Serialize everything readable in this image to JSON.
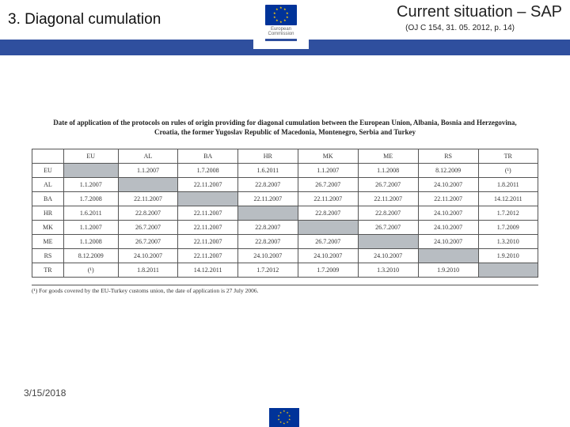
{
  "header": {
    "title_left": "3. Diagonal cumulation",
    "title_right": "Current situation – SAP",
    "subtitle": "(OJ C 154, 31. 05. 2012, p. 14)",
    "logo_text1": "European",
    "logo_text2": "Commission"
  },
  "caption": "Date of application of the protocols on rules of origin providing for diagonal cumulation between the European Union, Albania, Bosnia and Herzegovina, Croatia, the former Yugoslav Republic of Macedonia, Montenegro, Serbia and Turkey",
  "matrix": {
    "cols": [
      "EU",
      "AL",
      "BA",
      "HR",
      "MK",
      "ME",
      "RS",
      "TR"
    ],
    "rows": [
      {
        "h": "EU",
        "cells": [
          "",
          "1.1.2007",
          "1.7.2008",
          "1.6.2011",
          "1.1.2007",
          "1.1.2008",
          "8.12.2009",
          "(¹)"
        ],
        "grey": [
          0
        ]
      },
      {
        "h": "AL",
        "cells": [
          "1.1.2007",
          "",
          "22.11.2007",
          "22.8.2007",
          "26.7.2007",
          "26.7.2007",
          "24.10.2007",
          "1.8.2011"
        ],
        "grey": [
          1
        ]
      },
      {
        "h": "BA",
        "cells": [
          "1.7.2008",
          "22.11.2007",
          "",
          "22.11.2007",
          "22.11.2007",
          "22.11.2007",
          "22.11.2007",
          "14.12.2011"
        ],
        "grey": [
          2
        ]
      },
      {
        "h": "HR",
        "cells": [
          "1.6.2011",
          "22.8.2007",
          "22.11.2007",
          "",
          "22.8.2007",
          "22.8.2007",
          "24.10.2007",
          "1.7.2012"
        ],
        "grey": [
          3
        ]
      },
      {
        "h": "MK",
        "cells": [
          "1.1.2007",
          "26.7.2007",
          "22.11.2007",
          "22.8.2007",
          "",
          "26.7.2007",
          "24.10.2007",
          "1.7.2009"
        ],
        "grey": [
          4
        ]
      },
      {
        "h": "ME",
        "cells": [
          "1.1.2008",
          "26.7.2007",
          "22.11.2007",
          "22.8.2007",
          "26.7.2007",
          "",
          "24.10.2007",
          "1.3.2010"
        ],
        "grey": [
          5
        ]
      },
      {
        "h": "RS",
        "cells": [
          "8.12.2009",
          "24.10.2007",
          "22.11.2007",
          "24.10.2007",
          "24.10.2007",
          "24.10.2007",
          "",
          "1.9.2010"
        ],
        "grey": [
          6
        ]
      },
      {
        "h": "TR",
        "cells": [
          "(¹)",
          "1.8.2011",
          "14.12.2011",
          "1.7.2012",
          "1.7.2009",
          "1.3.2010",
          "1.9.2010",
          ""
        ],
        "grey": [
          7
        ]
      }
    ]
  },
  "footnote": "(¹) For goods covered by the EU-Turkey customs union, the date of application is 27 July 2006.",
  "footer": {
    "date": "3/15/2018"
  },
  "colors": {
    "brand_blue": "#2f4f9e",
    "eu_blue": "#003399",
    "eu_gold": "#ffcc00",
    "grey_cell": "#b8bdc2"
  }
}
